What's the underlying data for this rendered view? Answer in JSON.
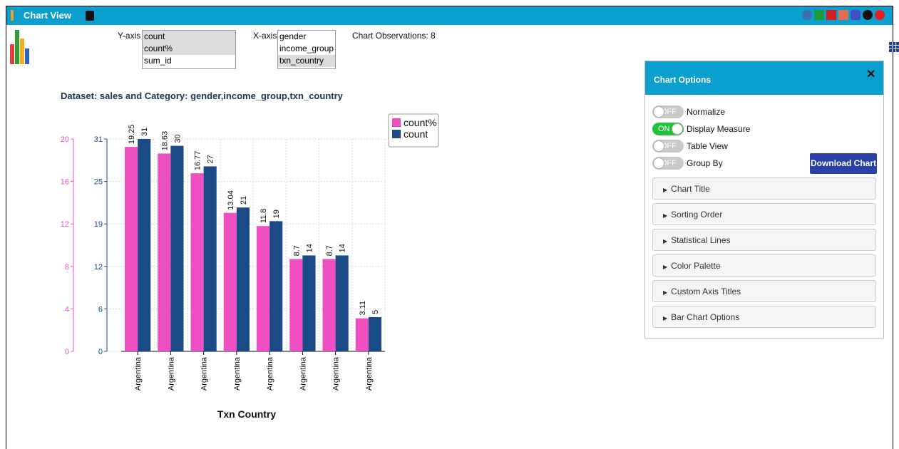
{
  "header": {
    "title": "Chart View"
  },
  "controls": {
    "y_axis_label": "Y-axis",
    "y_axis_options": [
      "count",
      "count%",
      "sum_id"
    ],
    "y_axis_selected": [
      0,
      1
    ],
    "x_axis_label": "X-axis",
    "x_axis_options": [
      "gender",
      "income_group",
      "txn_country"
    ],
    "x_axis_selected": [
      2
    ],
    "observations": "Chart Observations: 8"
  },
  "chart_data": {
    "type": "bar",
    "title": "Dataset: sales and Category: gender,income_group,txn_country",
    "x_label": "Txn Country",
    "categories": [
      "Argentina",
      "Argentina",
      "Argentina",
      "Argentina",
      "Argentina",
      "Argentina",
      "Argentina",
      "Argentina"
    ],
    "series": [
      {
        "name": "count%",
        "color": "#f04fc1",
        "values": [
          19.25,
          18.63,
          16.77,
          13.04,
          11.8,
          8.7,
          8.7,
          3.11
        ]
      },
      {
        "name": "count",
        "color": "#1b4b86",
        "axis": "y2",
        "values": [
          31,
          30,
          27,
          21,
          19,
          14,
          14,
          5
        ]
      }
    ],
    "ylim": [
      0,
      20
    ],
    "yticks": [
      0,
      4,
      8,
      12,
      16,
      20
    ],
    "y2lim": [
      0,
      31
    ],
    "y2ticks": [
      0,
      {
        "value": 6.2,
        "label": "6"
      },
      {
        "value": 12.4,
        "label": "12"
      },
      {
        "value": 18.6,
        "label": "19"
      },
      {
        "value": 24.8,
        "label": "25"
      },
      31
    ],
    "grid": true,
    "legend": "top-right"
  },
  "options_panel": {
    "title": "Chart Options",
    "toggles": [
      {
        "state": "OFF",
        "on": false,
        "label": "Normalize"
      },
      {
        "state": "ON",
        "on": true,
        "label": "Display Measure"
      },
      {
        "state": "OFF",
        "on": false,
        "label": "Table View"
      },
      {
        "state": "OFF",
        "on": false,
        "label": "Group By"
      }
    ],
    "download_button": "Download Chart",
    "sections": [
      "Chart Title",
      "Sorting Order",
      "Statistical Lines",
      "Color Palette",
      "Custom Axis Titles",
      "Bar Chart Options"
    ]
  }
}
